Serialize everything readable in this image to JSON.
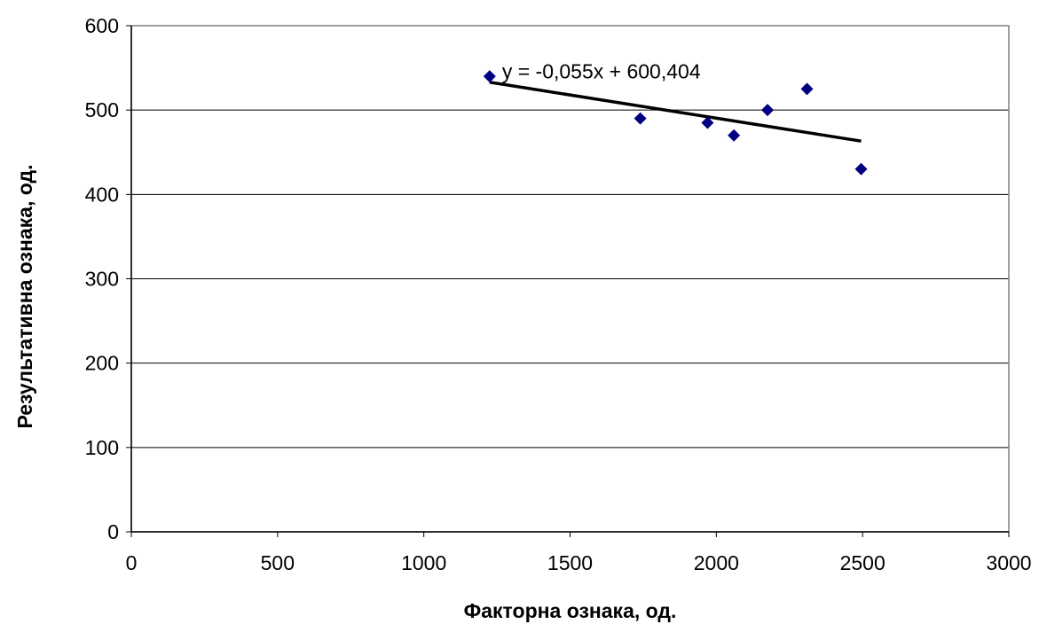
{
  "chart_data": {
    "type": "scatter",
    "title": "",
    "xlabel": "Факторна ознака, од.",
    "ylabel": "Результативна ознака, од.",
    "xlim": [
      0,
      3000
    ],
    "ylim": [
      0,
      600
    ],
    "x_ticks": [
      "0",
      "500",
      "1000",
      "1500",
      "2000",
      "2500",
      "3000"
    ],
    "y_ticks": [
      "0",
      "100",
      "200",
      "300",
      "400",
      "500",
      "600"
    ],
    "grid": "horizontal",
    "legend": "none",
    "series": [
      {
        "points": [
          {
            "x": 1225,
            "y": 540
          },
          {
            "x": 1740,
            "y": 490
          },
          {
            "x": 1970,
            "y": 485
          },
          {
            "x": 2060,
            "y": 470
          },
          {
            "x": 2175,
            "y": 500
          },
          {
            "x": 2310,
            "y": 525
          },
          {
            "x": 2495,
            "y": 430
          }
        ],
        "color": "#000080",
        "marker": "diamond"
      }
    ],
    "trendline": {
      "slope": -0.055,
      "intercept": 600.404,
      "x_range": [
        1225,
        2495
      ],
      "color": "#000000",
      "equation": "y = -0,055x + 600,404"
    }
  }
}
